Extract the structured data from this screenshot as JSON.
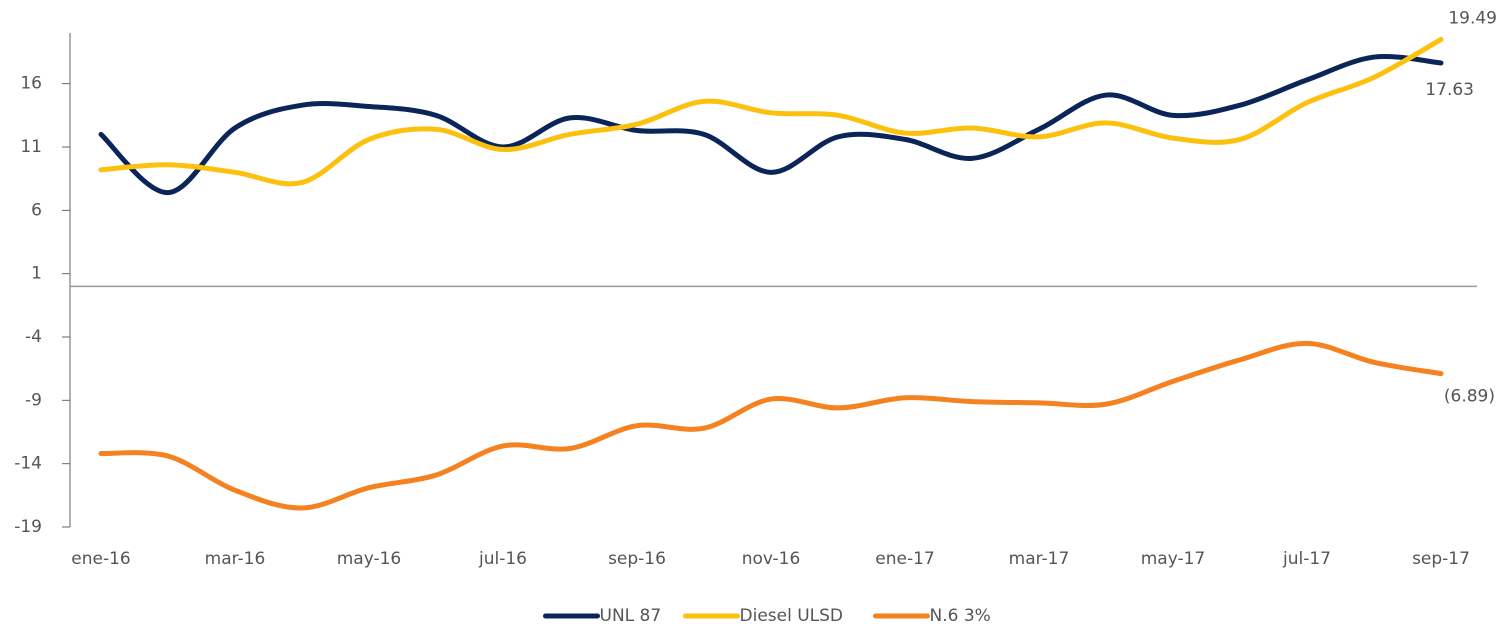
{
  "chart_data": {
    "type": "line",
    "categories": [
      "ene-16",
      null,
      "mar-16",
      null,
      "may-16",
      null,
      "jul-16",
      null,
      "sep-16",
      null,
      "nov-16",
      null,
      "ene-17",
      null,
      "mar-17",
      null,
      "may-17",
      null,
      "jul-17",
      null,
      "sep-17"
    ],
    "series": [
      {
        "name": "UNL 87",
        "color": "#0b2559",
        "values": [
          12.0,
          7.4,
          12.5,
          14.3,
          14.2,
          13.5,
          11.0,
          13.3,
          12.3,
          12.0,
          9.0,
          11.8,
          11.6,
          10.1,
          12.4,
          15.1,
          13.5,
          14.3,
          16.3,
          18.1,
          17.63
        ],
        "value_labels": [
          null,
          null,
          null,
          null,
          null,
          null,
          null,
          null,
          null,
          null,
          null,
          null,
          null,
          null,
          null,
          null,
          null,
          null,
          null,
          null,
          "17.63"
        ]
      },
      {
        "name": "Diesel ULSD",
        "color": "#fcc10e",
        "values": [
          9.2,
          9.6,
          9.0,
          8.2,
          11.6,
          12.4,
          10.8,
          12.0,
          12.8,
          14.6,
          13.7,
          13.5,
          12.1,
          12.5,
          11.8,
          12.9,
          11.7,
          11.6,
          14.5,
          16.5,
          19.49
        ],
        "value_labels": [
          null,
          null,
          null,
          null,
          null,
          null,
          null,
          null,
          null,
          null,
          null,
          null,
          null,
          null,
          null,
          null,
          null,
          null,
          null,
          null,
          "19.49"
        ]
      },
      {
        "name": "N.6 3%",
        "color": "#f58220",
        "values": [
          -13.2,
          -13.4,
          -16.1,
          -17.5,
          -15.9,
          -14.9,
          -12.6,
          -12.8,
          -11.0,
          -11.2,
          -8.9,
          -9.6,
          -8.8,
          -9.1,
          -9.2,
          -9.3,
          -7.5,
          -5.8,
          -4.5,
          -6.0,
          -6.89
        ],
        "value_labels": [
          null,
          null,
          null,
          null,
          null,
          null,
          null,
          null,
          null,
          null,
          null,
          null,
          null,
          null,
          null,
          null,
          null,
          null,
          null,
          null,
          "(6.89)"
        ]
      }
    ],
    "ylim": [
      -19,
      20
    ],
    "yticks": [
      -19,
      -14,
      -9,
      -4,
      1,
      6,
      11,
      16
    ],
    "legend": "bottom"
  }
}
